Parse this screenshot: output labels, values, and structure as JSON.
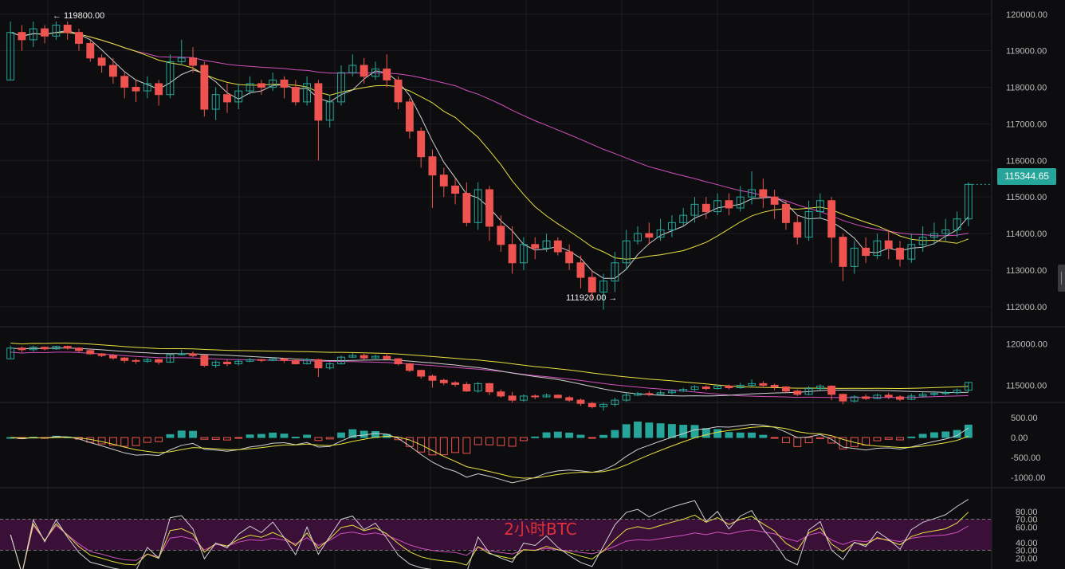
{
  "watermark": "2小时BTC",
  "current_price_label": "115344.65",
  "high_label": "← 119800.00",
  "low_label": "111920.00 →",
  "colors": {
    "up": "#26a69a",
    "down": "#ef5350",
    "ma_fast": "#d0d0d0",
    "ma_mid": "#e8e040",
    "ma_slow": "#d050c0",
    "background": "#0d0d0f",
    "grid": "#1d1d22",
    "rsi_band": "#3a1038",
    "watermark": "#e0303a"
  },
  "chart_data": [
    {
      "type": "candlestick",
      "title": "",
      "ylim": [
        111800,
        120300
      ],
      "y_ticks": [
        "120000.00",
        "119000.00",
        "118000.00",
        "117000.00",
        "116000.00",
        "115000.00",
        "114000.00",
        "113000.00",
        "112000.00"
      ],
      "annotations": {
        "high": 119800,
        "low": 111920,
        "last": 115344.65
      },
      "candles": [
        [
          118200,
          119500,
          119800,
          118200
        ],
        [
          119500,
          119300,
          119700,
          119000
        ],
        [
          119300,
          119600,
          119800,
          119100
        ],
        [
          119600,
          119400,
          119700,
          119200
        ],
        [
          119400,
          119700,
          119800,
          119300
        ],
        [
          119700,
          119500,
          119800,
          119300
        ],
        [
          119500,
          119200,
          119600,
          119000
        ],
        [
          119200,
          118800,
          119300,
          118700
        ],
        [
          118800,
          118600,
          118900,
          118400
        ],
        [
          118600,
          118300,
          118800,
          118100
        ],
        [
          118300,
          118000,
          118400,
          117700
        ],
        [
          118000,
          117900,
          118200,
          117600
        ],
        [
          117900,
          118100,
          118300,
          117700
        ],
        [
          118100,
          117800,
          118200,
          117500
        ],
        [
          117800,
          118700,
          118900,
          117700
        ],
        [
          118700,
          118800,
          119300,
          118600
        ],
        [
          118800,
          118600,
          119100,
          118400
        ],
        [
          118600,
          117400,
          118700,
          117200
        ],
        [
          117400,
          117800,
          118000,
          117100
        ],
        [
          117800,
          117600,
          118100,
          117300
        ],
        [
          117600,
          117900,
          118100,
          117400
        ],
        [
          117900,
          118100,
          118300,
          117800
        ],
        [
          118100,
          118000,
          118200,
          117800
        ],
        [
          118000,
          118200,
          118400,
          117900
        ],
        [
          118200,
          118000,
          118300,
          117700
        ],
        [
          118000,
          117600,
          118200,
          117500
        ],
        [
          117600,
          118100,
          118300,
          117500
        ],
        [
          118100,
          117100,
          118200,
          116000
        ],
        [
          117100,
          117600,
          117800,
          116900
        ],
        [
          117600,
          118400,
          118600,
          117500
        ],
        [
          118400,
          118600,
          118900,
          118300
        ],
        [
          118600,
          118300,
          118800,
          118100
        ],
        [
          118300,
          118500,
          118700,
          118200
        ],
        [
          118500,
          118200,
          118900,
          118000
        ],
        [
          118200,
          117600,
          118300,
          117400
        ],
        [
          117600,
          116800,
          117700,
          116600
        ],
        [
          116800,
          116100,
          116900,
          115800
        ],
        [
          116100,
          115600,
          116300,
          114700
        ],
        [
          115600,
          115300,
          115800,
          115000
        ],
        [
          115300,
          115100,
          115500,
          114800
        ],
        [
          115100,
          114300,
          115400,
          114200
        ],
        [
          114300,
          115200,
          115400,
          114100
        ],
        [
          115200,
          114200,
          115300,
          113800
        ],
        [
          114200,
          113700,
          114500,
          113500
        ],
        [
          113700,
          113200,
          114200,
          112900
        ],
        [
          113200,
          113700,
          113900,
          113000
        ],
        [
          113700,
          113600,
          113900,
          113300
        ],
        [
          113600,
          113800,
          114000,
          113500
        ],
        [
          113800,
          113500,
          113900,
          113400
        ],
        [
          113500,
          113200,
          113700,
          113000
        ],
        [
          113200,
          112800,
          113400,
          112500
        ],
        [
          112800,
          112400,
          113000,
          112200
        ],
        [
          112400,
          112700,
          112900,
          111920
        ],
        [
          112700,
          113200,
          113500,
          112400
        ],
        [
          113200,
          113800,
          114100,
          113000
        ],
        [
          113800,
          114000,
          114200,
          113700
        ],
        [
          114000,
          113900,
          114300,
          113700
        ],
        [
          113900,
          114100,
          114400,
          113800
        ],
        [
          114100,
          114300,
          114500,
          113900
        ],
        [
          114300,
          114500,
          114700,
          114200
        ],
        [
          114500,
          114800,
          115000,
          114300
        ],
        [
          114800,
          114600,
          115000,
          114400
        ],
        [
          114600,
          114900,
          115100,
          114500
        ],
        [
          114900,
          114700,
          115100,
          114500
        ],
        [
          114700,
          115000,
          115300,
          114600
        ],
        [
          115000,
          115200,
          115700,
          114800
        ],
        [
          115200,
          115000,
          115500,
          114700
        ],
        [
          115000,
          114800,
          115200,
          114400
        ],
        [
          114800,
          114300,
          114900,
          114100
        ],
        [
          114300,
          113900,
          114500,
          113700
        ],
        [
          113900,
          114600,
          114900,
          113800
        ],
        [
          114600,
          114900,
          115100,
          114400
        ],
        [
          114900,
          113900,
          115000,
          113200
        ],
        [
          113900,
          113100,
          114000,
          112700
        ],
        [
          113100,
          113600,
          113800,
          112900
        ],
        [
          113600,
          113400,
          113900,
          113200
        ],
        [
          113400,
          113800,
          114000,
          113300
        ],
        [
          113800,
          113600,
          114100,
          113300
        ],
        [
          113600,
          113300,
          113800,
          113100
        ],
        [
          113300,
          113700,
          114000,
          113200
        ],
        [
          113700,
          113900,
          114200,
          113500
        ],
        [
          113900,
          114000,
          114300,
          113700
        ],
        [
          114000,
          114100,
          114400,
          113800
        ],
        [
          114100,
          114400,
          114600,
          113900
        ],
        [
          114400,
          115344.65,
          115400,
          114200
        ]
      ],
      "ma_series_names": []
    },
    {
      "type": "line",
      "ylim": [
        113500,
        121500
      ],
      "y_ticks": [
        "120000.00",
        "115000.00"
      ]
    },
    {
      "type": "bar",
      "ylim": [
        -1100,
        600
      ],
      "y_ticks": [
        "500.00",
        "0.00",
        "-500.00",
        "-1000.00"
      ]
    },
    {
      "type": "line",
      "ylim": [
        10,
        90
      ],
      "y_ticks": [
        "80.00",
        "70.00",
        "60.00",
        "40.00",
        "30.00",
        "20.00"
      ],
      "band": [
        30,
        70
      ]
    }
  ]
}
